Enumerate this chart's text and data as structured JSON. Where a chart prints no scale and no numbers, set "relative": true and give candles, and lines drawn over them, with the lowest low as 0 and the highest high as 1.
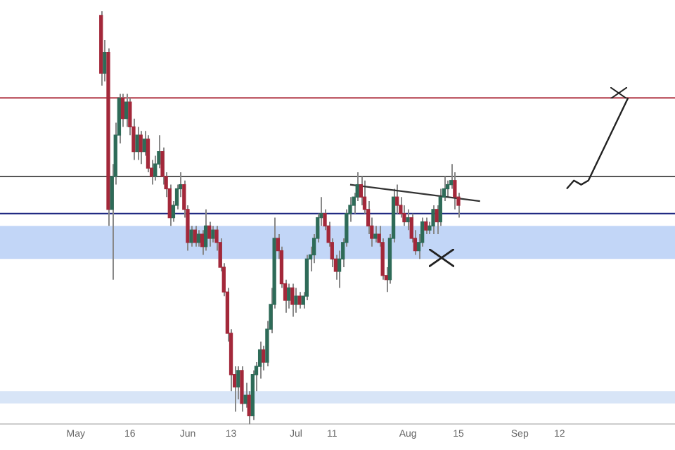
{
  "chart_data": {
    "type": "candlestick",
    "relative": true,
    "grid": false,
    "xlim": [
      "--04-10",
      "--10-14"
    ],
    "xticks": [
      {
        "value": "--05-01",
        "label": "May"
      },
      {
        "value": "--05-16",
        "label": "16"
      },
      {
        "value": "--06-01",
        "label": "Jun"
      },
      {
        "value": "--06-13",
        "label": "13"
      },
      {
        "value": "--07-01",
        "label": "Jul"
      },
      {
        "value": "--07-11",
        "label": "11"
      },
      {
        "value": "--08-01",
        "label": "Aug"
      },
      {
        "value": "--08-15",
        "label": "15"
      },
      {
        "value": "--09-01",
        "label": "Sep"
      },
      {
        "value": "--09-12",
        "label": "12"
      }
    ],
    "x": [
      "--05-08",
      "--05-09",
      "--05-10",
      "--05-11",
      "--05-12",
      "--05-13",
      "--05-14",
      "--05-15",
      "--05-16",
      "--05-17",
      "--05-18",
      "--05-19",
      "--05-20",
      "--05-21",
      "--05-22",
      "--05-23",
      "--05-24",
      "--05-25",
      "--05-26",
      "--05-27",
      "--05-28",
      "--05-29",
      "--05-30",
      "--05-31",
      "--06-01",
      "--06-02",
      "--06-03",
      "--06-04",
      "--06-05",
      "--06-06",
      "--06-07",
      "--06-08",
      "--06-09",
      "--06-10",
      "--06-11",
      "--06-12",
      "--06-13",
      "--06-14",
      "--06-15",
      "--06-16",
      "--06-17",
      "--06-18",
      "--06-19",
      "--06-20",
      "--06-21",
      "--06-22",
      "--06-23",
      "--06-24",
      "--06-25",
      "--06-26",
      "--06-27",
      "--06-28",
      "--06-29",
      "--06-30",
      "--07-01",
      "--07-02",
      "--07-03",
      "--07-04",
      "--07-05",
      "--07-06",
      "--07-07",
      "--07-08",
      "--07-09",
      "--07-10",
      "--07-11",
      "--07-12",
      "--07-13",
      "--07-14",
      "--07-15",
      "--07-16",
      "--07-17",
      "--07-18",
      "--07-19",
      "--07-20",
      "--07-21",
      "--07-22",
      "--07-23",
      "--07-24",
      "--07-25",
      "--07-26",
      "--07-27",
      "--07-28",
      "--07-29",
      "--07-30",
      "--07-31",
      "--08-01",
      "--08-02",
      "--08-03",
      "--08-04",
      "--08-05",
      "--08-06",
      "--08-07",
      "--08-08",
      "--08-09",
      "--08-10",
      "--08-11",
      "--08-12",
      "--08-13",
      "--08-14",
      "--08-15"
    ],
    "ohlc": [
      [
        0.99,
        1,
        0.82,
        0.85
      ],
      [
        0.85,
        0.93,
        0.83,
        0.9
      ],
      [
        0.9,
        0.91,
        0.48,
        0.52
      ],
      [
        0.52,
        0.63,
        0.35,
        0.6
      ],
      [
        0.6,
        0.73,
        0.58,
        0.7
      ],
      [
        0.7,
        0.8,
        0.68,
        0.79
      ],
      [
        0.79,
        0.8,
        0.72,
        0.74
      ],
      [
        0.74,
        0.8,
        0.72,
        0.78
      ],
      [
        0.78,
        0.79,
        0.7,
        0.72
      ],
      [
        0.72,
        0.74,
        0.64,
        0.66
      ],
      [
        0.66,
        0.72,
        0.64,
        0.7
      ],
      [
        0.7,
        0.71,
        0.63,
        0.66
      ],
      [
        0.66,
        0.71,
        0.65,
        0.69
      ],
      [
        0.69,
        0.7,
        0.61,
        0.62
      ],
      [
        0.62,
        0.64,
        0.58,
        0.6
      ],
      [
        0.6,
        0.65,
        0.59,
        0.63
      ],
      [
        0.63,
        0.7,
        0.62,
        0.66
      ],
      [
        0.66,
        0.67,
        0.58,
        0.6
      ],
      [
        0.6,
        0.61,
        0.55,
        0.57
      ],
      [
        0.57,
        0.58,
        0.48,
        0.5
      ],
      [
        0.5,
        0.54,
        0.49,
        0.53
      ],
      [
        0.53,
        0.58,
        0.52,
        0.57
      ],
      [
        0.57,
        0.61,
        0.55,
        0.58
      ],
      [
        0.58,
        0.59,
        0.5,
        0.52
      ],
      [
        0.52,
        0.53,
        0.42,
        0.44
      ],
      [
        0.44,
        0.48,
        0.43,
        0.47
      ],
      [
        0.47,
        0.48,
        0.43,
        0.44
      ],
      [
        0.44,
        0.47,
        0.43,
        0.46
      ],
      [
        0.46,
        0.47,
        0.41,
        0.43
      ],
      [
        0.43,
        0.52,
        0.42,
        0.48
      ],
      [
        0.48,
        0.49,
        0.43,
        0.45
      ],
      [
        0.45,
        0.48,
        0.44,
        0.47
      ],
      [
        0.47,
        0.48,
        0.42,
        0.44
      ],
      [
        0.44,
        0.45,
        0.37,
        0.38
      ],
      [
        0.38,
        0.39,
        0.31,
        0.32
      ],
      [
        0.32,
        0.33,
        0.2,
        0.22
      ],
      [
        0.22,
        0.23,
        0.08,
        0.12
      ],
      [
        0.12,
        0.14,
        0.03,
        0.09
      ],
      [
        0.09,
        0.14,
        0.06,
        0.13
      ],
      [
        0.13,
        0.14,
        0.03,
        0.05
      ],
      [
        0.05,
        0.1,
        0.04,
        0.07
      ],
      [
        0.07,
        0.08,
        0,
        0.02
      ],
      [
        0.02,
        0.13,
        0.01,
        0.12
      ],
      [
        0.12,
        0.15,
        0.08,
        0.14
      ],
      [
        0.14,
        0.2,
        0.11,
        0.18
      ],
      [
        0.18,
        0.19,
        0.13,
        0.15
      ],
      [
        0.15,
        0.25,
        0.14,
        0.23
      ],
      [
        0.23,
        0.33,
        0.22,
        0.29
      ],
      [
        0.29,
        0.5,
        0.28,
        0.45
      ],
      [
        0.45,
        0.46,
        0.4,
        0.42
      ],
      [
        0.42,
        0.43,
        0.33,
        0.34
      ],
      [
        0.34,
        0.35,
        0.27,
        0.3
      ],
      [
        0.3,
        0.34,
        0.28,
        0.33
      ],
      [
        0.33,
        0.34,
        0.26,
        0.29
      ],
      [
        0.29,
        0.33,
        0.27,
        0.31
      ],
      [
        0.31,
        0.32,
        0.28,
        0.29
      ],
      [
        0.29,
        0.32,
        0.28,
        0.31
      ],
      [
        0.31,
        0.41,
        0.3,
        0.4
      ],
      [
        0.4,
        0.43,
        0.37,
        0.41
      ],
      [
        0.41,
        0.46,
        0.39,
        0.45
      ],
      [
        0.45,
        0.51,
        0.44,
        0.5
      ],
      [
        0.5,
        0.55,
        0.48,
        0.51
      ],
      [
        0.51,
        0.52,
        0.47,
        0.48
      ],
      [
        0.48,
        0.49,
        0.43,
        0.44
      ],
      [
        0.44,
        0.45,
        0.38,
        0.4
      ],
      [
        0.4,
        0.41,
        0.35,
        0.37
      ],
      [
        0.37,
        0.42,
        0.33,
        0.4
      ],
      [
        0.4,
        0.45,
        0.38,
        0.44
      ],
      [
        0.44,
        0.52,
        0.43,
        0.51
      ],
      [
        0.51,
        0.55,
        0.49,
        0.53
      ],
      [
        0.53,
        0.56,
        0.51,
        0.55
      ],
      [
        0.55,
        0.61,
        0.54,
        0.58
      ],
      [
        0.58,
        0.6,
        0.53,
        0.55
      ],
      [
        0.55,
        0.59,
        0.51,
        0.52
      ],
      [
        0.52,
        0.54,
        0.46,
        0.48
      ],
      [
        0.48,
        0.5,
        0.43,
        0.45
      ],
      [
        0.45,
        0.48,
        0.44,
        0.46
      ],
      [
        0.46,
        0.48,
        0.43,
        0.44
      ],
      [
        0.44,
        0.45,
        0.35,
        0.36
      ],
      [
        0.36,
        0.38,
        0.32,
        0.35
      ],
      [
        0.35,
        0.46,
        0.34,
        0.45
      ],
      [
        0.45,
        0.57,
        0.44,
        0.55
      ],
      [
        0.55,
        0.58,
        0.51,
        0.53
      ],
      [
        0.53,
        0.55,
        0.5,
        0.51
      ],
      [
        0.51,
        0.53,
        0.48,
        0.49
      ],
      [
        0.49,
        0.52,
        0.47,
        0.5
      ],
      [
        0.5,
        0.51,
        0.44,
        0.45
      ],
      [
        0.45,
        0.47,
        0.41,
        0.42
      ],
      [
        0.42,
        0.46,
        0.4,
        0.44
      ],
      [
        0.44,
        0.5,
        0.43,
        0.49
      ],
      [
        0.49,
        0.5,
        0.46,
        0.47
      ],
      [
        0.47,
        0.49,
        0.46,
        0.48
      ],
      [
        0.48,
        0.53,
        0.46,
        0.52
      ],
      [
        0.52,
        0.53,
        0.46,
        0.49
      ],
      [
        0.49,
        0.57,
        0.48,
        0.55
      ],
      [
        0.55,
        0.6,
        0.54,
        0.57
      ],
      [
        0.57,
        0.59,
        0.55,
        0.58
      ],
      [
        0.58,
        0.63,
        0.57,
        0.59
      ],
      [
        0.59,
        0.61,
        0.52,
        0.55
      ],
      [
        0.55,
        0.56,
        0.5,
        0.53
      ]
    ],
    "series": [
      {
        "type": "line",
        "color": "#333333",
        "x": [
          "--07-16",
          "--08-21"
        ],
        "values": [
          0.58,
          0.54
        ]
      },
      {
        "type": "line",
        "color": "#222222",
        "x": [
          "--09-14",
          "--09-16",
          "--09-18",
          "--09-20",
          "--10-01"
        ],
        "values": [
          0.57,
          0.59,
          0.58,
          0.59,
          0.79
        ]
      }
    ],
    "ref_lines": [
      {
        "axis": "y",
        "value": 0.79,
        "color": "#b23a48"
      },
      {
        "axis": "y",
        "value": 0.6,
        "color": "#555555"
      },
      {
        "axis": "y",
        "value": 0.51,
        "color": "#1a237e"
      }
    ],
    "bands": [
      {
        "axis": "y",
        "from": 0.4,
        "to": 0.48,
        "color": "#90b4f0"
      },
      {
        "axis": "y",
        "from": 0.05,
        "to": 0.08,
        "color": "#b8d0f0"
      }
    ]
  }
}
